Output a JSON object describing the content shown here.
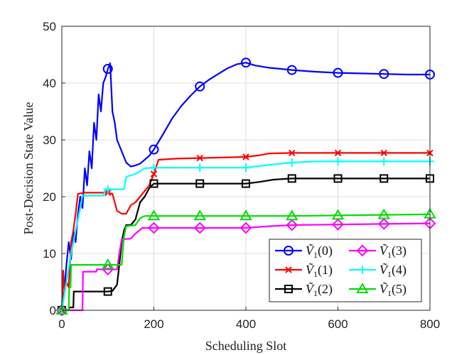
{
  "chart_data": {
    "type": "line",
    "xlabel": "Scheduling Slot",
    "ylabel": "Post-Decision State Value",
    "xlim": [
      0,
      800
    ],
    "ylim": [
      0,
      50
    ],
    "x_ticks": [
      0,
      200,
      400,
      600,
      800
    ],
    "y_ticks": [
      0,
      10,
      20,
      30,
      40,
      50
    ],
    "grid": true,
    "legend_position": "bottom-right",
    "series": [
      {
        "name": "Ṽ1(0)",
        "sub": "1",
        "arg": "(0)",
        "color": "#0000ff",
        "marker": "circle",
        "points": [
          [
            0,
            0
          ],
          [
            5,
            3
          ],
          [
            10,
            8
          ],
          [
            15,
            12
          ],
          [
            20,
            9
          ],
          [
            25,
            14
          ],
          [
            30,
            12
          ],
          [
            35,
            17
          ],
          [
            40,
            20
          ],
          [
            45,
            18
          ],
          [
            50,
            25
          ],
          [
            55,
            22
          ],
          [
            60,
            28
          ],
          [
            65,
            25
          ],
          [
            70,
            33
          ],
          [
            75,
            30
          ],
          [
            80,
            38
          ],
          [
            85,
            35
          ],
          [
            90,
            40
          ],
          [
            95,
            41
          ],
          [
            100,
            42.5
          ],
          [
            105,
            43.5
          ],
          [
            110,
            35
          ],
          [
            115,
            33
          ],
          [
            120,
            30
          ],
          [
            130,
            28
          ],
          [
            140,
            26
          ],
          [
            150,
            25.3
          ],
          [
            160,
            25.5
          ],
          [
            170,
            25.8
          ],
          [
            180,
            26.5
          ],
          [
            190,
            27.2
          ],
          [
            200,
            28.3
          ],
          [
            220,
            31
          ],
          [
            240,
            33.8
          ],
          [
            260,
            36
          ],
          [
            280,
            37.8
          ],
          [
            300,
            39.4
          ],
          [
            320,
            40.6
          ],
          [
            340,
            41.6
          ],
          [
            360,
            42.6
          ],
          [
            380,
            43.3
          ],
          [
            400,
            43.6
          ],
          [
            420,
            43.1
          ],
          [
            450,
            42.7
          ],
          [
            500,
            42.3
          ],
          [
            550,
            42.0
          ],
          [
            600,
            41.8
          ],
          [
            650,
            41.7
          ],
          [
            700,
            41.6
          ],
          [
            750,
            41.5
          ],
          [
            800,
            41.5
          ]
        ],
        "markers_x": [
          0,
          100,
          200,
          300,
          400,
          500,
          600,
          700,
          800
        ]
      },
      {
        "name": "Ṽ1(1)",
        "sub": "1",
        "arg": "(1)",
        "color": "#ff0000",
        "marker": "x",
        "points": [
          [
            0,
            0
          ],
          [
            3,
            7
          ],
          [
            6,
            3
          ],
          [
            10,
            5
          ],
          [
            15,
            4
          ],
          [
            20,
            12
          ],
          [
            25,
            14
          ],
          [
            30,
            17
          ],
          [
            35,
            20.5
          ],
          [
            50,
            20.7
          ],
          [
            100,
            20.7
          ],
          [
            110,
            20.5
          ],
          [
            120,
            17.5
          ],
          [
            130,
            17
          ],
          [
            140,
            17
          ],
          [
            150,
            18.5
          ],
          [
            160,
            19
          ],
          [
            170,
            20
          ],
          [
            180,
            21
          ],
          [
            190,
            22
          ],
          [
            200,
            24
          ],
          [
            210,
            26.5
          ],
          [
            250,
            26.7
          ],
          [
            300,
            26.8
          ],
          [
            400,
            27
          ],
          [
            430,
            27.3
          ],
          [
            450,
            27.6
          ],
          [
            500,
            27.7
          ],
          [
            600,
            27.7
          ],
          [
            700,
            27.7
          ],
          [
            800,
            27.7
          ]
        ],
        "markers_x": [
          0,
          100,
          200,
          300,
          400,
          500,
          600,
          700,
          800
        ]
      },
      {
        "name": "Ṽ1(2)",
        "sub": "1",
        "arg": "(2)",
        "color": "#000000",
        "marker": "square",
        "points": [
          [
            0,
            0
          ],
          [
            15,
            0
          ],
          [
            16,
            0.5
          ],
          [
            25,
            0.5
          ],
          [
            26,
            3.3
          ],
          [
            100,
            3.3
          ],
          [
            110,
            3.4
          ],
          [
            120,
            4.5
          ],
          [
            125,
            8
          ],
          [
            130,
            12
          ],
          [
            135,
            14
          ],
          [
            140,
            15
          ],
          [
            150,
            15
          ],
          [
            160,
            16
          ],
          [
            170,
            19
          ],
          [
            180,
            20
          ],
          [
            190,
            21.5
          ],
          [
            200,
            22.3
          ],
          [
            300,
            22.3
          ],
          [
            400,
            22.3
          ],
          [
            430,
            22.6
          ],
          [
            460,
            23
          ],
          [
            500,
            23.2
          ],
          [
            600,
            23.2
          ],
          [
            700,
            23.2
          ],
          [
            800,
            23.2
          ]
        ],
        "markers_x": [
          0,
          100,
          200,
          300,
          400,
          500,
          600,
          700,
          800
        ]
      },
      {
        "name": "Ṽ1(3)",
        "sub": "1",
        "arg": "(3)",
        "color": "#ff00ff",
        "marker": "diamond",
        "points": [
          [
            0,
            0
          ],
          [
            45,
            0
          ],
          [
            46,
            6.8
          ],
          [
            75,
            6.8
          ],
          [
            76,
            7.2
          ],
          [
            120,
            7.2
          ],
          [
            125,
            10
          ],
          [
            130,
            12.5
          ],
          [
            150,
            12.6
          ],
          [
            160,
            13.5
          ],
          [
            175,
            14.5
          ],
          [
            200,
            14.5
          ],
          [
            300,
            14.5
          ],
          [
            400,
            14.5
          ],
          [
            450,
            14.8
          ],
          [
            500,
            15.0
          ],
          [
            600,
            15.1
          ],
          [
            700,
            15.2
          ],
          [
            800,
            15.3
          ]
        ],
        "markers_x": [
          0,
          100,
          200,
          300,
          400,
          500,
          600,
          700,
          800
        ]
      },
      {
        "name": "Ṽ1(4)",
        "sub": "1",
        "arg": "(4)",
        "color": "#00ffff",
        "marker": "plus",
        "points": [
          [
            0,
            0
          ],
          [
            10,
            5
          ],
          [
            20,
            10
          ],
          [
            30,
            14
          ],
          [
            40,
            18
          ],
          [
            45,
            20.2
          ],
          [
            90,
            20.2
          ],
          [
            95,
            21.3
          ],
          [
            135,
            21.3
          ],
          [
            140,
            23.5
          ],
          [
            160,
            24
          ],
          [
            180,
            25
          ],
          [
            200,
            25.1
          ],
          [
            300,
            25.1
          ],
          [
            400,
            25.1
          ],
          [
            420,
            25.3
          ],
          [
            450,
            25.6
          ],
          [
            500,
            26.0
          ],
          [
            550,
            26.2
          ],
          [
            600,
            26.2
          ],
          [
            700,
            26.2
          ],
          [
            800,
            26.2
          ]
        ],
        "markers_x": [
          0,
          100,
          200,
          300,
          400,
          500,
          600,
          700,
          800
        ]
      },
      {
        "name": "Ṽ1(5)",
        "sub": "1",
        "arg": "(5)",
        "color": "#00dd00",
        "marker": "triangle",
        "points": [
          [
            0,
            0
          ],
          [
            15,
            0
          ],
          [
            16,
            4
          ],
          [
            19,
            4
          ],
          [
            20,
            8
          ],
          [
            130,
            8
          ],
          [
            135,
            13
          ],
          [
            140,
            14.8
          ],
          [
            160,
            15
          ],
          [
            170,
            16.2
          ],
          [
            180,
            16.6
          ],
          [
            300,
            16.6
          ],
          [
            400,
            16.6
          ],
          [
            500,
            16.6
          ],
          [
            600,
            16.7
          ],
          [
            700,
            16.8
          ],
          [
            800,
            16.9
          ]
        ],
        "markers_x": [
          0,
          100,
          200,
          300,
          400,
          500,
          600,
          700,
          800
        ]
      }
    ]
  }
}
